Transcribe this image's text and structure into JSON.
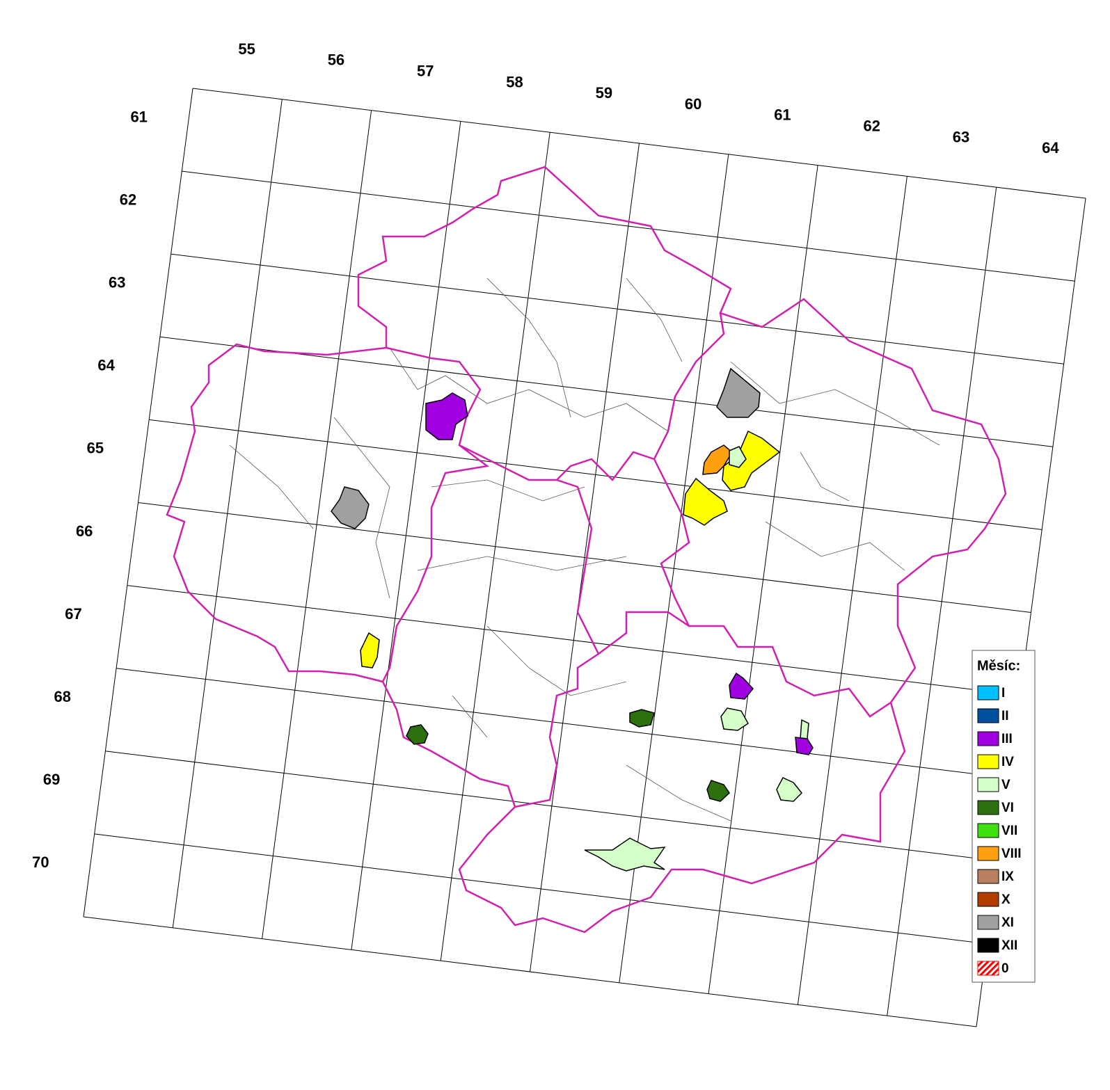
{
  "map": {
    "column_labels": [
      55,
      56,
      57,
      58,
      59,
      60,
      61,
      62,
      63,
      64
    ],
    "row_labels": [
      61,
      62,
      63,
      64,
      65,
      66,
      67,
      68,
      69,
      70
    ],
    "legend": {
      "title": "Měsíc:",
      "items": [
        {
          "label": "I",
          "color": "#00bfff"
        },
        {
          "label": "II",
          "color": "#0050a0"
        },
        {
          "label": "III",
          "color": "#a000e0"
        },
        {
          "label": "IV",
          "color": "#ffff00"
        },
        {
          "label": "V",
          "color": "#d4ffc8"
        },
        {
          "label": "VI",
          "color": "#2e7010"
        },
        {
          "label": "VII",
          "color": "#40e010"
        },
        {
          "label": "VIII",
          "color": "#ffa010"
        },
        {
          "label": "IX",
          "color": "#b88060"
        },
        {
          "label": "X",
          "color": "#b03c00"
        },
        {
          "label": "XI",
          "color": "#a0a0a0"
        },
        {
          "label": "XII",
          "color": "#000000"
        },
        {
          "label": "0",
          "color": "#ff0000",
          "hatched": true
        }
      ]
    }
  }
}
